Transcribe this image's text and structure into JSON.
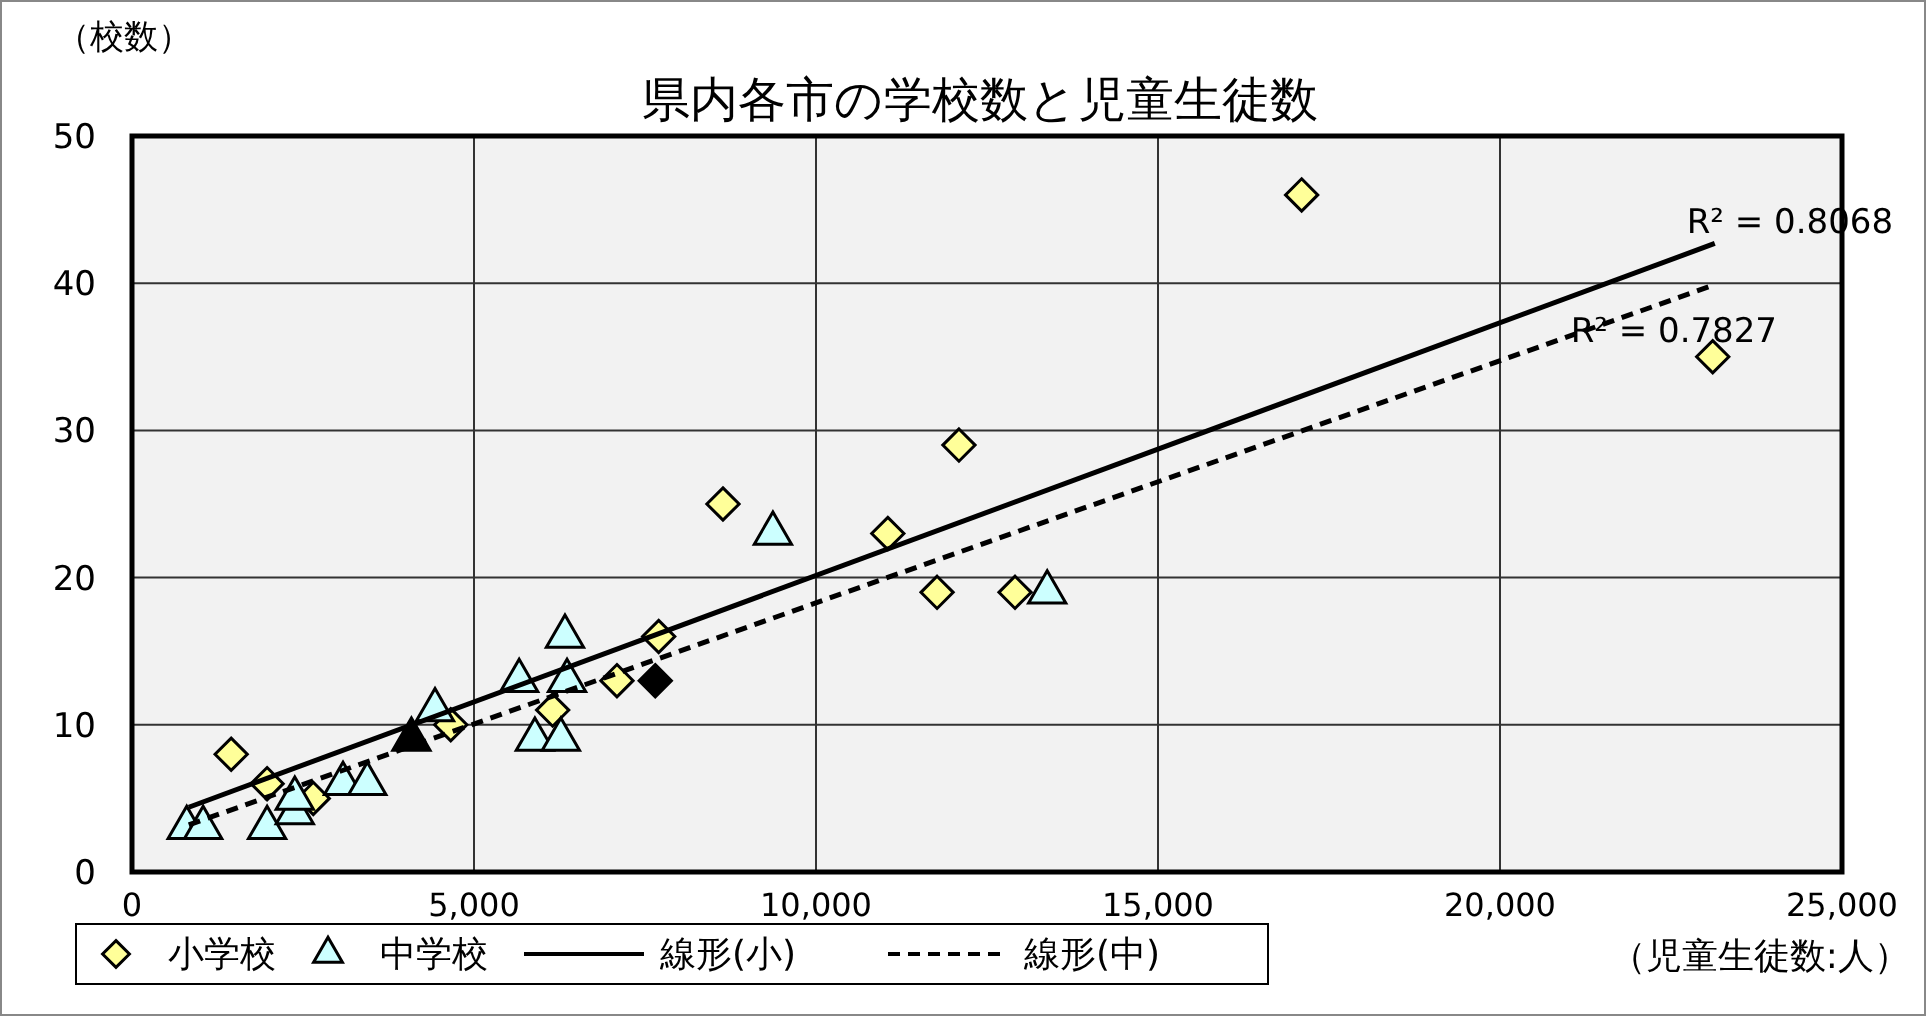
{
  "chart_data": {
    "type": "scatter",
    "title": "県内各市の学校数と児童生徒数",
    "xlabel": "（児童生徒数:人）",
    "ylabel": "（校数）",
    "xlim": [
      0,
      25000
    ],
    "xticks": [
      0,
      {
        "value": 5000,
        "label": "5,000"
      },
      {
        "value": 10000,
        "label": "10,000"
      },
      {
        "value": 15000,
        "label": "15,000"
      },
      {
        "value": 20000,
        "label": "20,000"
      },
      {
        "value": 25000,
        "label": "25,000"
      }
    ],
    "ylim": [
      0,
      50
    ],
    "yticks": [
      0,
      10,
      20,
      30,
      40,
      50
    ],
    "grid": true,
    "legend": "bottom",
    "series": [
      {
        "name": "小学校",
        "marker": "diamond",
        "color": "#ffff99",
        "x": [
          1450,
          1975,
          2650,
          4660,
          6150,
          7090,
          7700,
          8640,
          11050,
          11770,
          12090,
          12910,
          17100,
          23110
        ],
        "values": [
          8,
          6,
          5,
          10,
          11,
          13,
          16,
          25,
          23,
          19,
          29,
          19,
          46,
          35
        ]
      },
      {
        "name": "中学校",
        "marker": "triangle",
        "color": "#ccffff",
        "x": [
          800,
          1040,
          1975,
          2380,
          2380,
          3085,
          3440,
          4430,
          5660,
          6330,
          6360,
          5890,
          6270,
          9370,
          13380
        ],
        "values": [
          3,
          3,
          3,
          4,
          5,
          6,
          6,
          11,
          13,
          16,
          13,
          9,
          9,
          23,
          19
        ]
      },
      {
        "marker": "diamond",
        "color": "#000000",
        "x": [
          7650
        ],
        "values": [
          13
        ]
      },
      {
        "marker": "triangle",
        "color": "#000000",
        "x": [
          4085
        ],
        "values": [
          9
        ]
      },
      {
        "name": "線形(小)",
        "type": "line",
        "line_style": "solid",
        "color": "#000000",
        "x": [
          830,
          23140
        ],
        "values": [
          4.4,
          42.7
        ]
      },
      {
        "name": "線形(中)",
        "type": "line",
        "line_style": "dashed",
        "color": "#000000",
        "x": [
          830,
          23080
        ],
        "values": [
          3.2,
          39.8
        ]
      }
    ],
    "annotations": [
      "R² = 0.8068",
      "R² = 0.7827"
    ]
  }
}
